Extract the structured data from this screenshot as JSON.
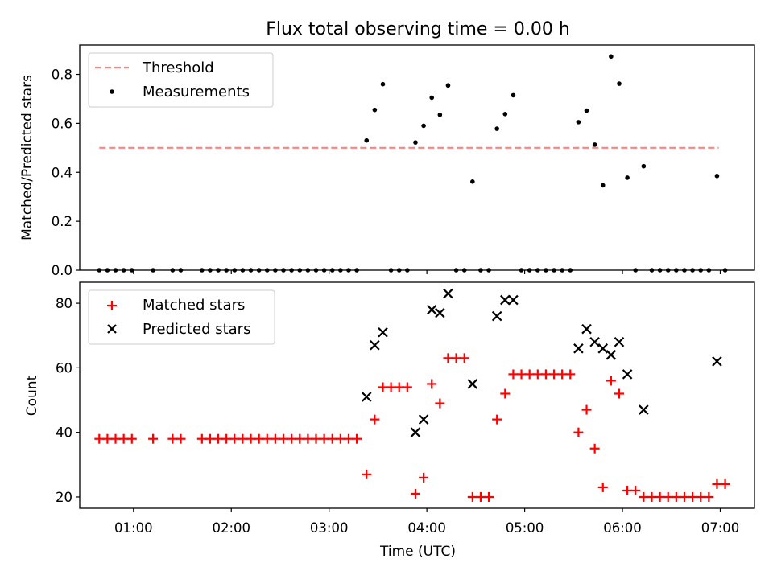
{
  "title": "Flux total observing time = 0.00 h",
  "xlabel": "Time (UTC)",
  "x_tick_labels": [
    "01:00",
    "02:00",
    "03:00",
    "04:00",
    "05:00",
    "06:00",
    "07:00"
  ],
  "colors": {
    "threshold": "#ff8080",
    "measurement": "#000000",
    "matched": "#ff0000",
    "predicted": "#000000"
  },
  "chart_data": [
    {
      "type": "scatter",
      "ylabel": "Matched/Predicted stars",
      "ylim": [
        0,
        0.92
      ],
      "y_tick_labels": [
        "0.0",
        "0.2",
        "0.4",
        "0.6",
        "0.8"
      ],
      "xlim": [
        "00:27",
        "07:21"
      ],
      "grid": false,
      "legend_position": "top-left",
      "threshold": {
        "name": "Threshold",
        "y": 0.5,
        "x_start": "00:39",
        "x_end": "06:59",
        "style": "dashed"
      },
      "series": [
        {
          "name": "Measurements",
          "points": [
            [
              "00:39",
              0
            ],
            [
              "00:44",
              0
            ],
            [
              "00:49",
              0
            ],
            [
              "00:54",
              0
            ],
            [
              "00:59",
              0
            ],
            [
              "01:12",
              0
            ],
            [
              "01:24",
              0
            ],
            [
              "01:29",
              0
            ],
            [
              "01:42",
              0
            ],
            [
              "01:47",
              0
            ],
            [
              "01:52",
              0
            ],
            [
              "01:57",
              0
            ],
            [
              "02:02",
              0
            ],
            [
              "02:07",
              0
            ],
            [
              "02:12",
              0
            ],
            [
              "02:17",
              0
            ],
            [
              "02:22",
              0
            ],
            [
              "02:27",
              0
            ],
            [
              "02:32",
              0
            ],
            [
              "02:37",
              0
            ],
            [
              "02:42",
              0
            ],
            [
              "02:47",
              0
            ],
            [
              "02:52",
              0
            ],
            [
              "02:57",
              0
            ],
            [
              "03:02",
              0
            ],
            [
              "03:07",
              0
            ],
            [
              "03:12",
              0
            ],
            [
              "03:17",
              0
            ],
            [
              "03:23",
              0.53
            ],
            [
              "03:28",
              0.655
            ],
            [
              "03:33",
              0.76
            ],
            [
              "03:38",
              0
            ],
            [
              "03:43",
              0
            ],
            [
              "03:48",
              0
            ],
            [
              "03:53",
              0.522
            ],
            [
              "03:58",
              0.59
            ],
            [
              "04:03",
              0.705
            ],
            [
              "04:08",
              0.635
            ],
            [
              "04:13",
              0.755
            ],
            [
              "04:18",
              0
            ],
            [
              "04:23",
              0
            ],
            [
              "04:28",
              0.362
            ],
            [
              "04:33",
              0
            ],
            [
              "04:38",
              0
            ],
            [
              "04:43",
              0.578
            ],
            [
              "04:48",
              0.638
            ],
            [
              "04:53",
              0.715
            ],
            [
              "04:58",
              0
            ],
            [
              "05:03",
              0
            ],
            [
              "05:08",
              0
            ],
            [
              "05:13",
              0
            ],
            [
              "05:18",
              0
            ],
            [
              "05:23",
              0
            ],
            [
              "05:28",
              0
            ],
            [
              "05:33",
              0.605
            ],
            [
              "05:38",
              0.652
            ],
            [
              "05:43",
              0.513
            ],
            [
              "05:48",
              0.347
            ],
            [
              "05:53",
              0.873
            ],
            [
              "05:58",
              0.762
            ],
            [
              "06:03",
              0.378
            ],
            [
              "06:08",
              0
            ],
            [
              "06:13",
              0.425
            ],
            [
              "06:18",
              0
            ],
            [
              "06:23",
              0
            ],
            [
              "06:28",
              0
            ],
            [
              "06:33",
              0
            ],
            [
              "06:38",
              0
            ],
            [
              "06:43",
              0
            ],
            [
              "06:48",
              0
            ],
            [
              "06:53",
              0
            ],
            [
              "06:58",
              0.385
            ],
            [
              "07:03",
              0
            ]
          ]
        }
      ]
    },
    {
      "type": "scatter",
      "ylabel": "Count",
      "ylim": [
        16.5,
        86.5
      ],
      "y_tick_labels": [
        "20",
        "40",
        "60",
        "80"
      ],
      "xlim": [
        "00:27",
        "07:21"
      ],
      "grid": false,
      "legend_position": "top-left",
      "series": [
        {
          "name": "Matched stars",
          "marker": "plus",
          "points": [
            [
              "00:39",
              38
            ],
            [
              "00:44",
              38
            ],
            [
              "00:49",
              38
            ],
            [
              "00:54",
              38
            ],
            [
              "00:59",
              38
            ],
            [
              "01:12",
              38
            ],
            [
              "01:24",
              38
            ],
            [
              "01:29",
              38
            ],
            [
              "01:42",
              38
            ],
            [
              "01:47",
              38
            ],
            [
              "01:52",
              38
            ],
            [
              "01:57",
              38
            ],
            [
              "02:02",
              38
            ],
            [
              "02:07",
              38
            ],
            [
              "02:12",
              38
            ],
            [
              "02:17",
              38
            ],
            [
              "02:22",
              38
            ],
            [
              "02:27",
              38
            ],
            [
              "02:32",
              38
            ],
            [
              "02:37",
              38
            ],
            [
              "02:42",
              38
            ],
            [
              "02:47",
              38
            ],
            [
              "02:52",
              38
            ],
            [
              "02:57",
              38
            ],
            [
              "03:02",
              38
            ],
            [
              "03:07",
              38
            ],
            [
              "03:12",
              38
            ],
            [
              "03:17",
              38
            ],
            [
              "03:23",
              27
            ],
            [
              "03:28",
              44
            ],
            [
              "03:33",
              54
            ],
            [
              "03:38",
              54
            ],
            [
              "03:43",
              54
            ],
            [
              "03:48",
              54
            ],
            [
              "03:53",
              21
            ],
            [
              "03:58",
              26
            ],
            [
              "04:03",
              55
            ],
            [
              "04:08",
              49
            ],
            [
              "04:13",
              63
            ],
            [
              "04:18",
              63
            ],
            [
              "04:23",
              63
            ],
            [
              "04:28",
              20
            ],
            [
              "04:33",
              20
            ],
            [
              "04:38",
              20
            ],
            [
              "04:43",
              44
            ],
            [
              "04:48",
              52
            ],
            [
              "04:53",
              58
            ],
            [
              "04:58",
              58
            ],
            [
              "05:03",
              58
            ],
            [
              "05:08",
              58
            ],
            [
              "05:13",
              58
            ],
            [
              "05:18",
              58
            ],
            [
              "05:23",
              58
            ],
            [
              "05:28",
              58
            ],
            [
              "05:33",
              40
            ],
            [
              "05:38",
              47
            ],
            [
              "05:43",
              35
            ],
            [
              "05:48",
              23
            ],
            [
              "05:53",
              56
            ],
            [
              "05:58",
              52
            ],
            [
              "06:03",
              22
            ],
            [
              "06:08",
              22
            ],
            [
              "06:13",
              20
            ],
            [
              "06:18",
              20
            ],
            [
              "06:23",
              20
            ],
            [
              "06:28",
              20
            ],
            [
              "06:33",
              20
            ],
            [
              "06:38",
              20
            ],
            [
              "06:43",
              20
            ],
            [
              "06:48",
              20
            ],
            [
              "06:53",
              20
            ],
            [
              "06:58",
              24
            ],
            [
              "07:03",
              24
            ]
          ]
        },
        {
          "name": "Predicted stars",
          "marker": "x",
          "points": [
            [
              "03:23",
              51
            ],
            [
              "03:28",
              67
            ],
            [
              "03:33",
              71
            ],
            [
              "03:53",
              40
            ],
            [
              "03:58",
              44
            ],
            [
              "04:03",
              78
            ],
            [
              "04:08",
              77
            ],
            [
              "04:13",
              83
            ],
            [
              "04:28",
              55
            ],
            [
              "04:43",
              76
            ],
            [
              "04:48",
              81
            ],
            [
              "04:53",
              81
            ],
            [
              "05:33",
              66
            ],
            [
              "05:38",
              72
            ],
            [
              "05:43",
              68
            ],
            [
              "05:48",
              66
            ],
            [
              "05:53",
              64
            ],
            [
              "05:58",
              68
            ],
            [
              "06:03",
              58
            ],
            [
              "06:13",
              47
            ],
            [
              "06:58",
              62
            ]
          ]
        }
      ]
    }
  ]
}
